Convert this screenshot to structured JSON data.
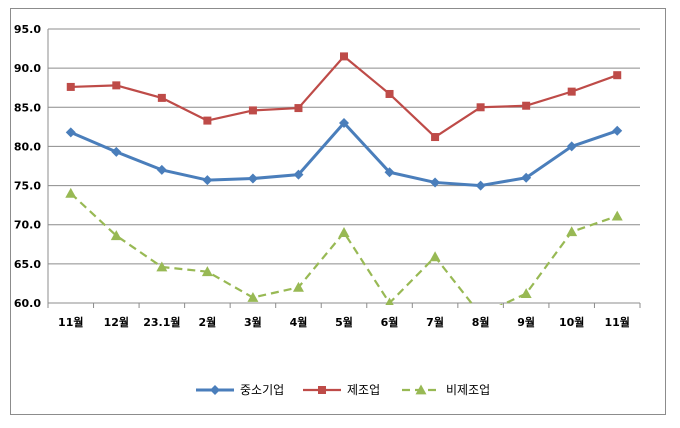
{
  "chart_data": {
    "type": "line",
    "categories": [
      "11월",
      "12월",
      "23.1월",
      "2월",
      "3월",
      "4월",
      "5월",
      "6월",
      "7월",
      "8월",
      "9월",
      "10월",
      "11월"
    ],
    "series": [
      {
        "name": "중소기업",
        "color": "#4a7ebb",
        "marker": "diamond",
        "dash": "solid",
        "values": [
          81.8,
          79.3,
          77.0,
          75.7,
          75.9,
          76.4,
          83.0,
          76.7,
          75.4,
          75.0,
          76.0,
          80.0,
          82.0
        ]
      },
      {
        "name": "제조업",
        "color": "#be4b48",
        "marker": "square",
        "dash": "solid",
        "values": [
          87.6,
          87.8,
          86.2,
          83.3,
          84.6,
          84.9,
          91.5,
          86.7,
          81.2,
          85.0,
          85.2,
          87.0,
          89.1
        ]
      },
      {
        "name": "비제조업",
        "color": "#98b954",
        "marker": "triangle",
        "dash": "dashed",
        "values": [
          74.0,
          68.6,
          64.6,
          64.0,
          60.7,
          62.0,
          69.0,
          60.0,
          65.9,
          58.5,
          61.2,
          69.1,
          71.1
        ]
      }
    ],
    "ylim": [
      60.0,
      95.0
    ],
    "yticks": [
      "95.0",
      "90.0",
      "85.0",
      "80.0",
      "75.0",
      "70.0",
      "65.0",
      "60.0"
    ],
    "grid": true,
    "legend": "bottom",
    "title": "",
    "xlabel": "",
    "ylabel": ""
  }
}
